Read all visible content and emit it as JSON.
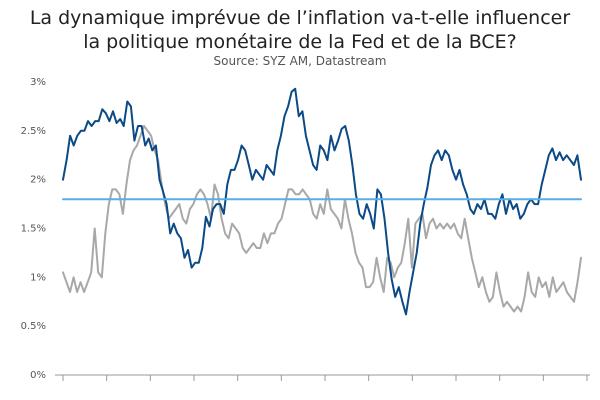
{
  "title_line1": "La dynamique imprévue de l’inflation va-t-elle influencer",
  "title_line2": "la politique monétaire de la Fed et de la BCE?",
  "subtitle": "Source: SYZ AM, Datastream",
  "colors": {
    "dark": "#0b4a86",
    "grey": "#a8a8a8",
    "light_blue": "#5aaee6",
    "axis": "#999999",
    "grid": "#e6e6e6"
  },
  "chart_data": {
    "type": "line",
    "title": "La dynamique imprévue de l’inflation va-t-elle influencer la politique monétaire de la Fed et de la BCE?",
    "subtitle": "Source: SYZ AM, Datastream",
    "xlabel": "",
    "ylabel": "",
    "x_tick_count": 13,
    "ylim": [
      0,
      3
    ],
    "y_ticks": [
      0,
      0.5,
      1,
      1.5,
      2,
      2.5,
      3
    ],
    "y_tick_labels": [
      "0%",
      "0.5%",
      "1%",
      "1.5%",
      "2%",
      "2.5%",
      "3%"
    ],
    "grid": false,
    "legend": "none",
    "series": [
      {
        "color": "#0b4a86",
        "values": [
          2.0,
          2.2,
          2.45,
          2.35,
          2.45,
          2.5,
          2.5,
          2.6,
          2.55,
          2.6,
          2.6,
          2.72,
          2.68,
          2.6,
          2.7,
          2.58,
          2.62,
          2.55,
          2.8,
          2.75,
          2.4,
          2.55,
          2.55,
          2.35,
          2.42,
          2.3,
          2.35,
          2.0,
          1.88,
          1.75,
          1.45,
          1.55,
          1.45,
          1.4,
          1.2,
          1.28,
          1.1,
          1.15,
          1.15,
          1.3,
          1.62,
          1.52,
          1.7,
          1.75,
          1.75,
          1.65,
          1.95,
          2.1,
          2.1,
          2.2,
          2.35,
          2.3,
          2.15,
          2.0,
          2.1,
          2.05,
          2.0,
          2.15,
          2.1,
          2.05,
          2.3,
          2.45,
          2.65,
          2.75,
          2.9,
          2.93,
          2.65,
          2.7,
          2.45,
          2.3,
          2.15,
          2.1,
          2.35,
          2.3,
          2.2,
          2.45,
          2.3,
          2.4,
          2.52,
          2.55,
          2.4,
          2.15,
          1.85,
          1.65,
          1.6,
          1.75,
          1.65,
          1.5,
          1.9,
          1.85,
          1.6,
          1.25,
          0.98,
          0.8,
          0.9,
          0.75,
          0.62,
          0.85,
          1.05,
          1.25,
          1.55,
          1.75,
          1.92,
          2.15,
          2.25,
          2.3,
          2.2,
          2.3,
          2.25,
          2.1,
          2.0,
          2.1,
          1.95,
          1.85,
          1.7,
          1.65,
          1.75,
          1.7,
          1.8,
          1.65,
          1.65,
          1.6,
          1.75,
          1.85,
          1.65,
          1.8,
          1.7,
          1.75,
          1.6,
          1.65,
          1.75,
          1.8,
          1.75,
          1.75,
          1.95,
          2.1,
          2.25,
          2.32,
          2.2,
          2.28,
          2.2,
          2.25,
          2.2,
          2.15,
          2.25,
          2.0
        ]
      },
      {
        "color": "#a8a8a8",
        "values": [
          1.05,
          0.95,
          0.85,
          1.0,
          0.85,
          0.95,
          0.85,
          0.95,
          1.05,
          1.5,
          1.05,
          1.0,
          1.45,
          1.75,
          1.9,
          1.9,
          1.85,
          1.65,
          1.95,
          2.2,
          2.3,
          2.35,
          2.45,
          2.55,
          2.5,
          2.45,
          2.3,
          2.2,
          1.95,
          1.75,
          1.6,
          1.65,
          1.7,
          1.75,
          1.6,
          1.55,
          1.7,
          1.75,
          1.85,
          1.9,
          1.85,
          1.75,
          1.6,
          1.95,
          1.85,
          1.6,
          1.45,
          1.4,
          1.55,
          1.5,
          1.45,
          1.3,
          1.25,
          1.3,
          1.35,
          1.3,
          1.3,
          1.45,
          1.35,
          1.45,
          1.45,
          1.55,
          1.6,
          1.75,
          1.9,
          1.9,
          1.85,
          1.85,
          1.9,
          1.85,
          1.8,
          1.65,
          1.6,
          1.75,
          1.65,
          1.9,
          1.7,
          1.65,
          1.6,
          1.5,
          1.8,
          1.6,
          1.45,
          1.25,
          1.15,
          1.1,
          0.9,
          0.9,
          0.95,
          1.2,
          1.0,
          0.85,
          1.2,
          1.15,
          1.0,
          1.1,
          1.15,
          1.35,
          1.6,
          1.1,
          1.55,
          1.6,
          1.65,
          1.4,
          1.55,
          1.6,
          1.5,
          1.55,
          1.5,
          1.55,
          1.5,
          1.55,
          1.45,
          1.4,
          1.6,
          1.4,
          1.2,
          1.05,
          0.9,
          1.0,
          0.85,
          0.75,
          0.8,
          1.05,
          0.85,
          0.7,
          0.75,
          0.7,
          0.65,
          0.7,
          0.65,
          0.8,
          1.05,
          0.85,
          0.8,
          1.0,
          0.9,
          0.95,
          0.8,
          1.0,
          0.85,
          0.9,
          0.95,
          0.85,
          0.8,
          0.75,
          0.95,
          1.2
        ]
      },
      {
        "color": "#5aaee6",
        "values": [
          1.8,
          1.8
        ]
      }
    ]
  }
}
